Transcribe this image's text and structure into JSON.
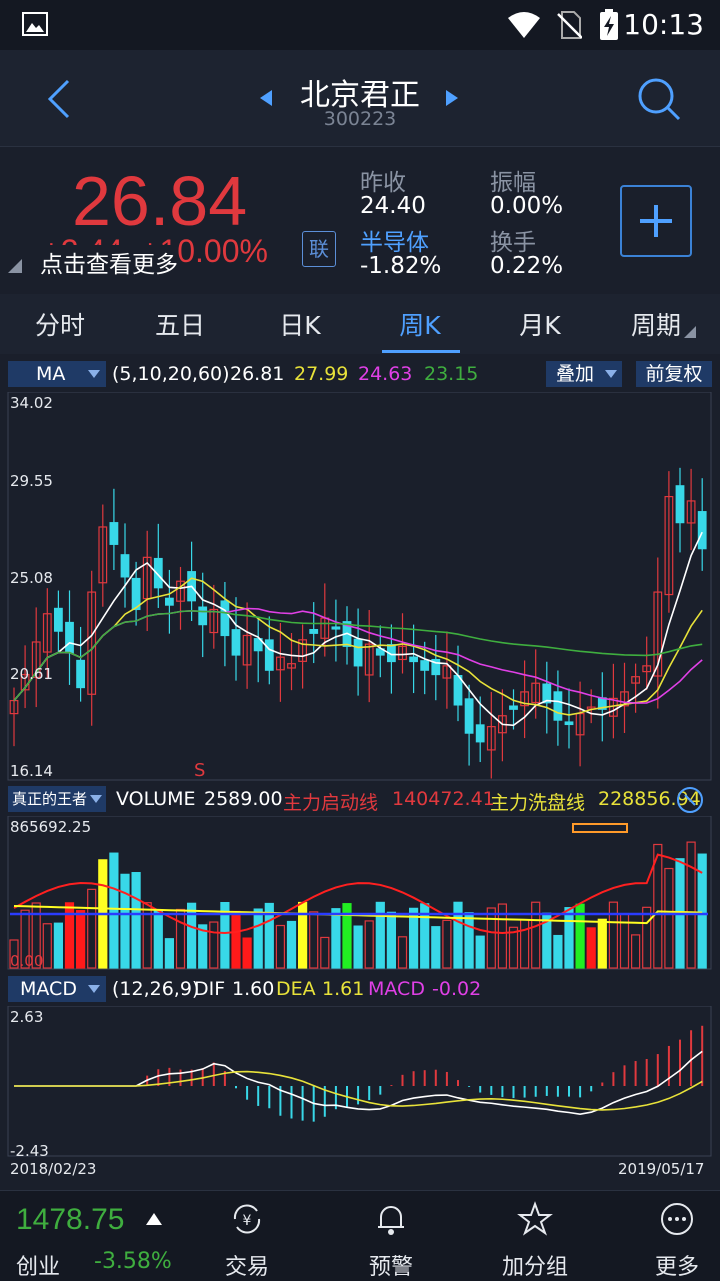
{
  "status": {
    "time": "10:13"
  },
  "header": {
    "title": "北京君正",
    "code": "300223"
  },
  "quote": {
    "price": "26.84",
    "change": "+2.44",
    "change_pct": "+10.00%",
    "hint": "点击查看更多",
    "lian": "联",
    "prev_close_label": "昨收",
    "prev_close": "24.40",
    "amplitude_label": "振幅",
    "amplitude": "0.00%",
    "sector_label": "半导体",
    "sector_change": "-1.82%",
    "turnover_label": "换手",
    "turnover": "0.22%"
  },
  "tabs": [
    "分时",
    "五日",
    "日K",
    "周K",
    "月K",
    "周期"
  ],
  "active_tab": "周K",
  "ma": {
    "label": "MA",
    "params": "(5,10,20,60)",
    "v5": "26.81",
    "v10": "27.99",
    "v20": "24.63",
    "v60": "23.15",
    "overlay": "叠加",
    "adjust": "前复权"
  },
  "price_axis": [
    "34.02",
    "29.55",
    "25.08",
    "20.61",
    "16.14"
  ],
  "signal_mark": "S",
  "volume": {
    "indicator": "真正的王者",
    "label": "VOLUME",
    "value": "2589.00",
    "line1_label": "主力启动线",
    "line1_value": "140472.41",
    "line2_label": "主力洗盘线",
    "line2_value": "228856.94",
    "top": "865692.25",
    "bottom": "0.00"
  },
  "macd": {
    "label": "MACD",
    "params": "(12,26,9)",
    "dif_label": "DIF",
    "dif": "1.60",
    "dea_label": "DEA",
    "dea": "1.61",
    "macd_label": "MACD",
    "macd": "-0.02",
    "top": "2.63",
    "bottom": "-2.43"
  },
  "dates": {
    "start": "2018/02/23",
    "end": "2019/05/17"
  },
  "colors": {
    "up": "#e0393e",
    "down": "#38d8e8",
    "ma5": "#ffffff",
    "ma10": "#e8e23a",
    "ma20": "#e040e6",
    "ma60": "#3fae3f",
    "accent": "#4fa0ff"
  },
  "bottom": {
    "index_value": "1478.75",
    "index_name": "创业",
    "index_change": "-3.58%",
    "items": [
      {
        "label": "交易",
        "icon": "yuan-cycle-icon"
      },
      {
        "label": "预警",
        "icon": "bell-icon"
      },
      {
        "label": "加分组",
        "icon": "star-icon"
      },
      {
        "label": "更多",
        "icon": "more-icon"
      }
    ]
  }
}
